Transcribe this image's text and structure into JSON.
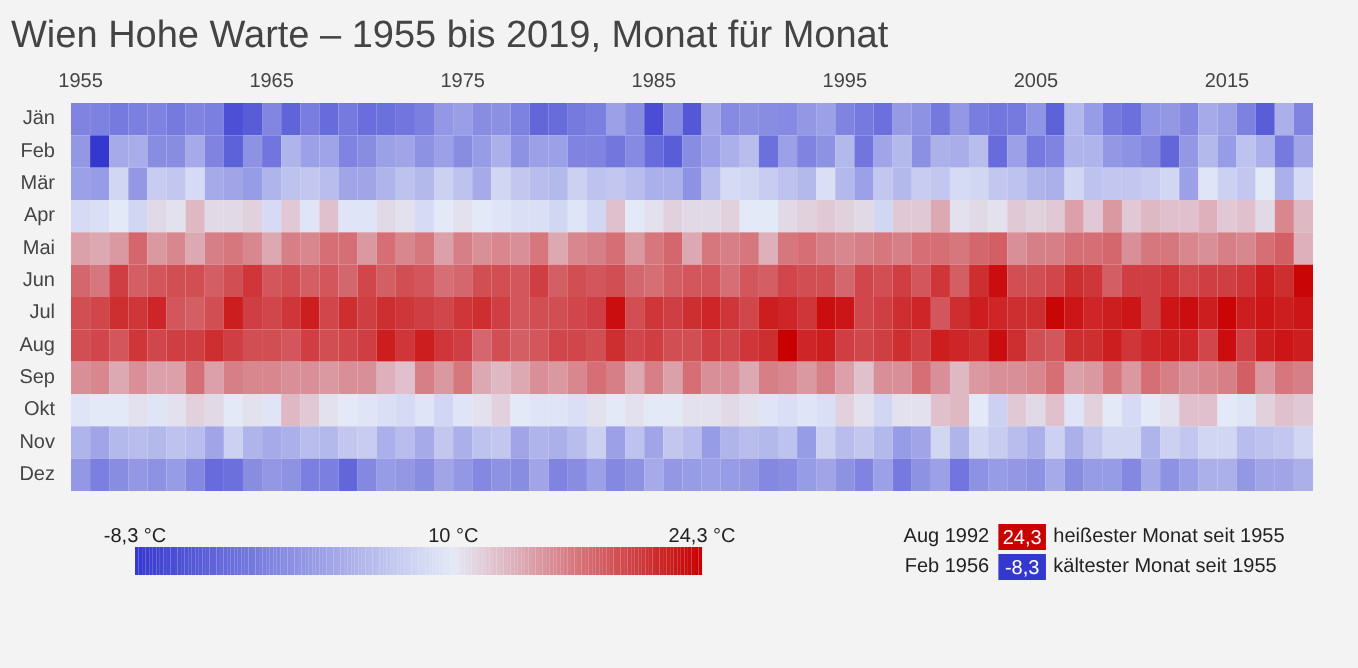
{
  "chart_data": {
    "type": "heatmap",
    "title": "Wien Hohe Warte – 1955 bis 2019, Monat für Monat",
    "categories": [
      "1955",
      null,
      null,
      null,
      null,
      null,
      null,
      null,
      null,
      null,
      "1965",
      null,
      null,
      null,
      null,
      null,
      null,
      null,
      null,
      null,
      "1975",
      null,
      null,
      null,
      null,
      null,
      null,
      null,
      null,
      null,
      "1985",
      null,
      null,
      null,
      null,
      null,
      null,
      null,
      null,
      null,
      "1995",
      null,
      null,
      null,
      null,
      null,
      null,
      null,
      null,
      null,
      "2005",
      null,
      null,
      null,
      null,
      null,
      null,
      null,
      null,
      null,
      "2015",
      null,
      null,
      null,
      null
    ],
    "y_categories": [
      "Jän",
      "Feb",
      "Mär",
      "Apr",
      "Mai",
      "Jun",
      "Jul",
      "Aug",
      "Sep",
      "Okt",
      "Nov",
      "Dez"
    ],
    "cells": [
      [
        -0.5,
        -0.8,
        -1.5,
        -1.0,
        -0.6,
        -1.5,
        -0.5,
        -1.0,
        -5.8,
        -4.6,
        -0.2,
        -3.8,
        -1.2,
        -3.0,
        -1.5,
        -2.8,
        -2.5,
        -2.0,
        -1.0,
        1.5,
        2.2,
        0.5,
        0.8,
        -0.8,
        -3.5,
        -3.0,
        -1.5,
        -1.0,
        2.5,
        0.3,
        -6.0,
        0.5,
        -5.0,
        3.0,
        0.2,
        0.8,
        0.5,
        0.2,
        1.5,
        2.5,
        -0.5,
        -1.5,
        -2.5,
        1.8,
        1.0,
        -1.6,
        1.5,
        -1.2,
        -1.8,
        -1.5,
        1.2,
        -4.0,
        4.8,
        2.0,
        -1.5,
        -2.5,
        1.2,
        1.5,
        0.0,
        3.5,
        2.5,
        -0.8,
        -4.5,
        4.0,
        -0.5
      ],
      [
        1.5,
        -8.3,
        3.5,
        3.8,
        0.5,
        0.5,
        3.5,
        -0.5,
        -4.0,
        1.0,
        -2.0,
        4.5,
        2.5,
        2.8,
        -0.5,
        0.5,
        2.5,
        3.0,
        1.0,
        2.5,
        0.5,
        2.0,
        4.0,
        1.0,
        2.5,
        2.5,
        -0.5,
        -0.5,
        -1.8,
        0.2,
        -3.0,
        -4.5,
        0.5,
        2.5,
        4.0,
        5.5,
        -2.5,
        2.5,
        -0.5,
        1.0,
        5.0,
        -2.0,
        3.0,
        5.0,
        0.8,
        4.2,
        3.8,
        5.5,
        -3.0,
        2.5,
        -1.5,
        -0.5,
        4.5,
        4.5,
        1.5,
        1.0,
        0.0,
        -3.5,
        1.5,
        5.0,
        2.0,
        6.0,
        4.0,
        -1.5,
        3.0
      ],
      [
        2.5,
        2.0,
        8.0,
        1.5,
        7.0,
        6.5,
        8.5,
        3.5,
        3.0,
        2.0,
        4.5,
        6.0,
        6.5,
        5.5,
        3.0,
        3.0,
        4.5,
        6.0,
        5.0,
        7.5,
        6.0,
        3.5,
        8.0,
        6.5,
        5.5,
        5.0,
        7.5,
        6.0,
        6.5,
        5.5,
        4.0,
        4.0,
        1.0,
        5.5,
        8.5,
        8.0,
        7.0,
        6.0,
        5.0,
        9.0,
        5.0,
        2.5,
        6.5,
        5.0,
        7.0,
        6.5,
        8.5,
        8.0,
        6.5,
        6.0,
        4.5,
        4.0,
        8.0,
        6.0,
        6.5,
        6.5,
        7.0,
        8.0,
        2.5,
        9.5,
        7.5,
        6.5,
        10.0,
        4.0,
        8.5
      ],
      [
        8.5,
        9.0,
        10.0,
        8.0,
        11.0,
        10.5,
        13.0,
        11.0,
        11.0,
        11.5,
        8.5,
        12.0,
        9.5,
        12.5,
        9.5,
        9.5,
        11.0,
        10.5,
        8.5,
        10.0,
        10.5,
        10.0,
        9.5,
        9.0,
        9.0,
        8.0,
        9.5,
        8.0,
        12.5,
        10.0,
        10.5,
        11.5,
        11.0,
        11.0,
        11.5,
        10.0,
        10.0,
        11.0,
        11.5,
        12.0,
        11.5,
        11.0,
        8.0,
        12.0,
        12.0,
        14.0,
        10.5,
        11.0,
        10.5,
        12.0,
        11.5,
        12.0,
        14.5,
        12.0,
        15.0,
        12.0,
        13.0,
        12.5,
        12.5,
        13.5,
        12.0,
        12.5,
        11.0,
        16.0,
        13.0
      ],
      [
        14.5,
        14.0,
        15.0,
        18.0,
        15.0,
        16.0,
        14.0,
        16.5,
        17.0,
        16.0,
        14.0,
        16.5,
        16.0,
        17.5,
        17.5,
        15.0,
        17.5,
        16.0,
        17.0,
        14.5,
        16.5,
        15.5,
        16.0,
        15.5,
        17.0,
        14.0,
        16.0,
        16.5,
        17.5,
        15.0,
        17.0,
        18.0,
        14.0,
        17.0,
        16.5,
        17.0,
        13.5,
        17.0,
        17.5,
        16.5,
        16.0,
        16.5,
        17.0,
        16.5,
        17.5,
        17.5,
        17.0,
        18.0,
        18.5,
        15.5,
        16.5,
        16.5,
        17.5,
        17.5,
        18.0,
        15.5,
        17.0,
        17.0,
        16.0,
        15.5,
        16.5,
        16.0,
        17.5,
        18.5,
        13.5
      ],
      [
        18.0,
        17.0,
        20.5,
        18.5,
        19.0,
        19.5,
        19.5,
        18.5,
        19.5,
        21.0,
        19.0,
        19.5,
        18.5,
        19.0,
        18.0,
        20.0,
        18.5,
        19.5,
        19.0,
        17.5,
        18.0,
        19.5,
        19.5,
        19.0,
        20.5,
        18.5,
        19.5,
        19.0,
        19.5,
        18.0,
        17.5,
        18.5,
        19.0,
        19.0,
        17.5,
        19.0,
        18.5,
        20.0,
        19.5,
        19.5,
        18.0,
        20.0,
        19.5,
        20.5,
        19.0,
        21.0,
        18.5,
        21.5,
        23.5,
        19.5,
        19.5,
        20.0,
        21.5,
        21.0,
        18.5,
        20.5,
        20.5,
        21.0,
        20.0,
        20.5,
        20.5,
        21.0,
        22.5,
        21.5,
        24.0
      ],
      [
        19.5,
        20.0,
        21.5,
        21.0,
        22.0,
        19.0,
        18.5,
        19.5,
        22.5,
        20.5,
        20.0,
        21.0,
        22.5,
        20.0,
        21.5,
        20.5,
        21.5,
        21.0,
        20.5,
        20.0,
        21.0,
        21.5,
        20.5,
        19.0,
        19.5,
        19.5,
        20.0,
        20.5,
        23.5,
        19.5,
        21.0,
        20.5,
        21.5,
        22.0,
        21.0,
        20.0,
        22.5,
        22.0,
        21.0,
        23.5,
        23.0,
        20.0,
        20.5,
        21.5,
        22.0,
        19.0,
        21.5,
        22.5,
        22.0,
        21.5,
        21.5,
        24.0,
        23.0,
        22.0,
        22.5,
        23.0,
        20.5,
        23.0,
        23.5,
        22.5,
        24.0,
        22.5,
        23.0,
        22.5,
        23.0
      ],
      [
        19.5,
        20.0,
        19.0,
        21.0,
        20.0,
        20.5,
        20.5,
        21.5,
        20.5,
        19.5,
        19.5,
        19.0,
        20.5,
        19.5,
        20.0,
        20.5,
        22.5,
        21.0,
        22.5,
        21.0,
        20.5,
        18.0,
        19.5,
        18.5,
        19.0,
        20.0,
        20.0,
        19.5,
        21.5,
        20.0,
        20.5,
        19.5,
        19.5,
        20.5,
        20.0,
        21.0,
        21.5,
        24.3,
        22.0,
        22.5,
        20.5,
        20.0,
        20.5,
        21.5,
        20.5,
        22.5,
        22.0,
        21.5,
        23.5,
        21.5,
        19.5,
        19.0,
        21.5,
        21.5,
        22.5,
        21.0,
        22.0,
        22.5,
        22.0,
        20.0,
        23.5,
        20.5,
        22.5,
        23.0,
        22.5
      ],
      [
        15.5,
        16.0,
        14.0,
        15.5,
        14.5,
        14.5,
        17.5,
        14.5,
        16.5,
        16.0,
        16.0,
        15.5,
        15.5,
        15.0,
        15.5,
        15.5,
        13.5,
        12.5,
        16.5,
        15.0,
        17.0,
        14.0,
        13.0,
        14.0,
        15.5,
        15.0,
        16.0,
        17.5,
        16.5,
        14.0,
        16.5,
        14.5,
        17.5,
        15.5,
        15.5,
        14.0,
        16.5,
        16.0,
        15.0,
        16.5,
        14.5,
        12.5,
        15.5,
        15.5,
        17.5,
        15.5,
        13.0,
        15.0,
        15.5,
        15.5,
        16.0,
        17.5,
        14.5,
        15.0,
        17.0,
        15.0,
        17.5,
        16.5,
        15.5,
        16.0,
        16.5,
        18.5,
        15.0,
        17.0,
        16.5
      ],
      [
        9.5,
        10.0,
        10.0,
        10.5,
        9.5,
        10.5,
        11.5,
        11.0,
        10.0,
        10.5,
        9.5,
        13.0,
        12.0,
        10.5,
        10.0,
        9.5,
        9.0,
        8.5,
        9.5,
        8.0,
        9.5,
        10.5,
        11.5,
        10.0,
        9.5,
        9.5,
        9.0,
        10.5,
        10.0,
        10.5,
        10.0,
        10.0,
        10.5,
        10.5,
        11.0,
        10.5,
        9.5,
        9.0,
        9.5,
        9.0,
        11.5,
        10.5,
        8.0,
        10.5,
        10.5,
        12.5,
        13.0,
        10.0,
        7.5,
        12.0,
        11.0,
        12.5,
        9.5,
        11.5,
        10.0,
        8.5,
        10.0,
        10.5,
        12.5,
        12.5,
        10.0,
        9.5,
        11.5,
        12.5,
        12.0
      ],
      [
        4.5,
        3.0,
        5.0,
        5.5,
        5.0,
        6.0,
        5.5,
        3.0,
        7.5,
        4.5,
        3.5,
        4.0,
        5.5,
        5.0,
        6.5,
        7.0,
        4.0,
        5.5,
        3.5,
        6.5,
        4.0,
        6.0,
        6.5,
        3.0,
        4.5,
        4.0,
        5.5,
        7.5,
        2.5,
        6.0,
        3.0,
        6.5,
        5.5,
        2.0,
        4.5,
        5.5,
        5.0,
        6.0,
        2.0,
        7.5,
        5.5,
        6.5,
        5.0,
        2.0,
        3.0,
        8.0,
        4.5,
        8.0,
        7.0,
        5.5,
        4.0,
        7.5,
        4.0,
        6.5,
        8.0,
        8.0,
        4.5,
        7.5,
        6.5,
        8.0,
        8.0,
        5.5,
        6.0,
        6.5,
        8.0
      ],
      [
        1.5,
        -1.0,
        0.5,
        1.5,
        1.0,
        2.0,
        0.0,
        -3.0,
        -2.5,
        0.5,
        1.5,
        1.0,
        -1.0,
        -1.0,
        -3.5,
        0.0,
        2.0,
        1.5,
        0.5,
        3.0,
        1.5,
        0.0,
        1.0,
        0.5,
        3.0,
        -0.5,
        0.5,
        2.5,
        0.0,
        1.0,
        3.5,
        1.5,
        2.0,
        2.5,
        2.0,
        1.5,
        0.0,
        0.5,
        2.0,
        3.0,
        1.0,
        -0.5,
        2.5,
        -1.5,
        1.0,
        2.5,
        -2.0,
        1.0,
        2.0,
        1.5,
        1.0,
        3.5,
        0.5,
        2.0,
        2.0,
        0.0,
        3.5,
        1.0,
        2.5,
        4.0,
        4.0,
        1.5,
        3.0,
        3.0,
        4.0
      ]
    ],
    "clim": [
      -8.3,
      24.3
    ],
    "cticks": [
      {
        "value": -8.3,
        "label": "-8,3 °C"
      },
      {
        "value": 10,
        "label": "10 °C"
      },
      {
        "value": 24.3,
        "label": "24,3 °C"
      }
    ],
    "colors": [
      "#3538cf",
      "#e4e9f7",
      "#c80000"
    ],
    "annotations": [
      "Aug 1992",
      "24,3",
      "heißester Monat seit 1955",
      "Feb 1956",
      "-8,3",
      "kältester Monat seit 1955"
    ]
  }
}
